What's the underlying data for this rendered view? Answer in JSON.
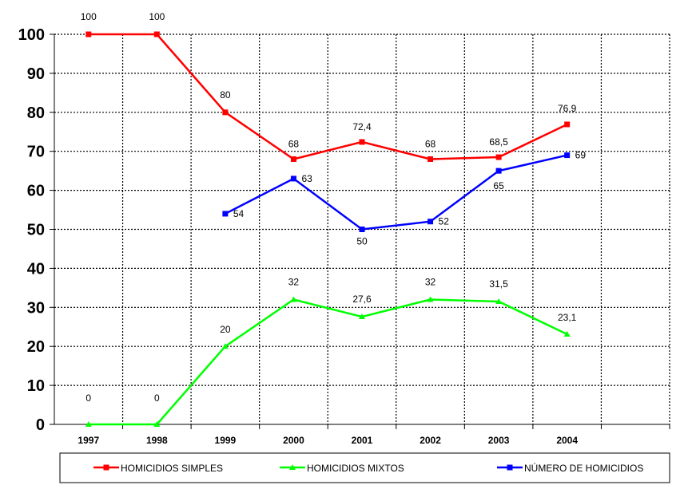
{
  "chart_data": {
    "type": "line",
    "title": "",
    "xlabel": "",
    "ylabel": "",
    "categories": [
      "1997",
      "1998",
      "1999",
      "2000",
      "2001",
      "2002",
      "2003",
      "2004"
    ],
    "ylim": [
      0,
      100
    ],
    "yticks": [
      "0",
      "10",
      "20",
      "30",
      "40",
      "50",
      "60",
      "70",
      "80",
      "90",
      "100"
    ],
    "grid": true,
    "legend_position": "bottom",
    "series": [
      {
        "name": "HOMICIDIOS SIMPLES",
        "color": "#ff0000",
        "marker": "square",
        "values": [
          100,
          100,
          80,
          68,
          72.4,
          68,
          68.5,
          76.9
        ],
        "labels": [
          "100",
          "100",
          "80",
          "68",
          "72,4",
          "68",
          "68,5",
          "76,9"
        ]
      },
      {
        "name": "HOMICIDIOS MIXTOS",
        "color": "#00ff00",
        "marker": "triangle",
        "values": [
          0,
          0,
          20,
          32,
          27.6,
          32,
          31.5,
          23.1
        ],
        "labels": [
          "0",
          "0",
          "20",
          "32",
          "27,6",
          "32",
          "31,5",
          "23,1"
        ]
      },
      {
        "name": "NÚMERO DE HOMICIDIOS",
        "color": "#0000ff",
        "marker": "square",
        "values": [
          null,
          null,
          54,
          63,
          50,
          52,
          65,
          69
        ],
        "labels": [
          "",
          "",
          "54",
          "63",
          "50",
          "52",
          "65",
          "69"
        ]
      }
    ]
  }
}
